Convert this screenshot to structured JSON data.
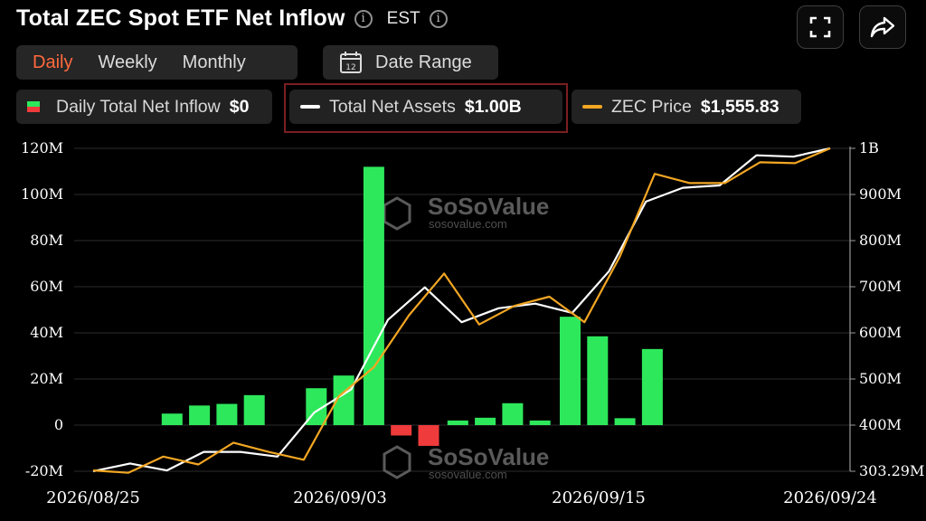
{
  "header": {
    "title": "Total ZEC Spot ETF Net Inflow",
    "info_glyph": "i",
    "timezone": "EST"
  },
  "tabs": [
    {
      "label": "Daily",
      "active": true
    },
    {
      "label": "Weekly",
      "active": false
    },
    {
      "label": "Monthly",
      "active": false
    }
  ],
  "date_range": {
    "label": "Date Range",
    "calendar_day": "12"
  },
  "legend": [
    {
      "label": "Daily Total Net Inflow",
      "value": "$0",
      "icon": "green-red-bar-swatch"
    },
    {
      "label": "Total Net Assets",
      "value": "$1.00B",
      "color": "#ffffff"
    },
    {
      "label": "ZEC Price",
      "value": "$1,555.83",
      "color": "#f2a623"
    }
  ],
  "watermark": {
    "name": "SoSoValue",
    "url": "sosovalue.com"
  },
  "icons": {
    "fullscreen": "fullscreen-icon",
    "share": "share-icon",
    "info": "info-icon",
    "calendar": "calendar-icon"
  },
  "colors": {
    "positive": "#2ee85c",
    "negative": "#ef3b3b",
    "assets_line": "#ffffff",
    "price_line": "#f2a623",
    "grid": "#2b2b2b",
    "active_tab": "#ff6a3d"
  },
  "chart_data": {
    "type": "bar",
    "left_axis": {
      "ylim": [
        -20000000,
        120000000
      ],
      "ticks": [
        "120M",
        "100M",
        "80M",
        "60M",
        "40M",
        "20M",
        "0",
        "-20M"
      ]
    },
    "right_axis": {
      "ylim": [
        303290000,
        1000000000
      ],
      "ticks": [
        "1B",
        "900M",
        "800M",
        "700M",
        "600M",
        "500M",
        "400M",
        "303.29M"
      ]
    },
    "x_labels": [
      "2026/08/25",
      "2026/09/03",
      "2026/09/15",
      "2026/09/24"
    ],
    "grid": true,
    "legend_position": "top",
    "series": [
      {
        "name": "Daily Total Net Inflow",
        "kind": "bar",
        "values": [
          null,
          5000000,
          8500000,
          9200000,
          13000000,
          null,
          16000000,
          21500000,
          112000000,
          -4500000,
          -9000000,
          2000000,
          3200000,
          9500000,
          2000000,
          47000000,
          38500000,
          3000000,
          33000000,
          null
        ]
      },
      {
        "name": "Total Net Assets",
        "kind": "line",
        "axis": "right",
        "values": [
          303290000,
          320000000,
          305000000,
          345000000,
          345000000,
          335000000,
          430000000,
          480000000,
          630000000,
          700000000,
          625000000,
          655000000,
          665000000,
          645000000,
          735000000,
          885000000,
          915000000,
          920000000,
          985000000,
          982000000,
          1000000000
        ]
      },
      {
        "name": "ZEC Price",
        "kind": "line",
        "axis": "right",
        "values": [
          305000000,
          300000000,
          335000000,
          318000000,
          365000000,
          345000000,
          328000000,
          465000000,
          528000000,
          640000000,
          730000000,
          620000000,
          660000000,
          680000000,
          625000000,
          765000000,
          945000000,
          925000000,
          925000000,
          970000000,
          968000000,
          1000000000
        ]
      }
    ]
  }
}
